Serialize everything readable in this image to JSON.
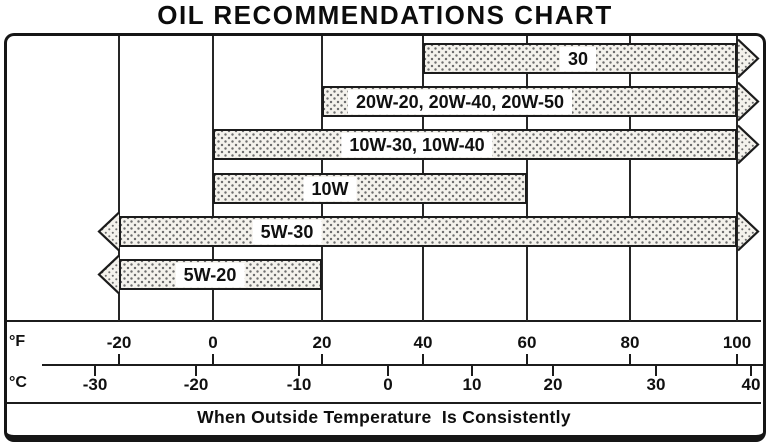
{
  "title": "OIL RECOMMENDATIONS CHART",
  "caption": "When Outside Temperature  Is Consistently",
  "fahrenheit_axis": {
    "unit": "°F",
    "tick_labels": [
      "-20",
      "0",
      "20",
      "40",
      "60",
      "80",
      "100"
    ]
  },
  "celsius_axis": {
    "unit": "°C",
    "tick_labels": [
      "-30",
      "-20",
      "-10",
      "0",
      "10",
      "20",
      "30",
      "40"
    ]
  },
  "chart_data": {
    "type": "bar",
    "subtype": "horizontal-temperature-range-arrows",
    "title": "OIL RECOMMENDATIONS CHART",
    "caption": "When Outside Temperature Is Consistently",
    "grid": true,
    "xlim_f": [
      -20,
      100
    ],
    "x_axis": {
      "fahrenheit": {
        "unit": "°F",
        "ticks": [
          -20,
          0,
          20,
          40,
          60,
          80,
          100
        ]
      },
      "celsius": {
        "unit": "°C",
        "ticks": [
          -30,
          -20,
          -10,
          0,
          10,
          20,
          30,
          40
        ]
      }
    },
    "series": [
      {
        "label": "30",
        "range_f": [
          40,
          100
        ],
        "arrow_low": false,
        "arrow_high": true
      },
      {
        "label": "20W-20, 20W-40, 20W-50",
        "range_f": [
          20,
          100
        ],
        "arrow_low": false,
        "arrow_high": true
      },
      {
        "label": "10W-30, 10W-40",
        "range_f": [
          0,
          100
        ],
        "arrow_low": false,
        "arrow_high": true
      },
      {
        "label": "10W",
        "range_f": [
          0,
          60
        ],
        "arrow_low": false,
        "arrow_high": false
      },
      {
        "label": "5W-30",
        "range_f": [
          -20,
          100
        ],
        "arrow_low": true,
        "arrow_high": true
      },
      {
        "label": "5W-20",
        "range_f": [
          -20,
          20
        ],
        "arrow_low": true,
        "arrow_high": false
      }
    ],
    "pattern": "halftone-dots",
    "colors": {
      "ink": "#1b1b1b",
      "paper": "#ffffff",
      "bar_fill": "#f4f2ec",
      "dot": "#6e6e6e"
    }
  }
}
